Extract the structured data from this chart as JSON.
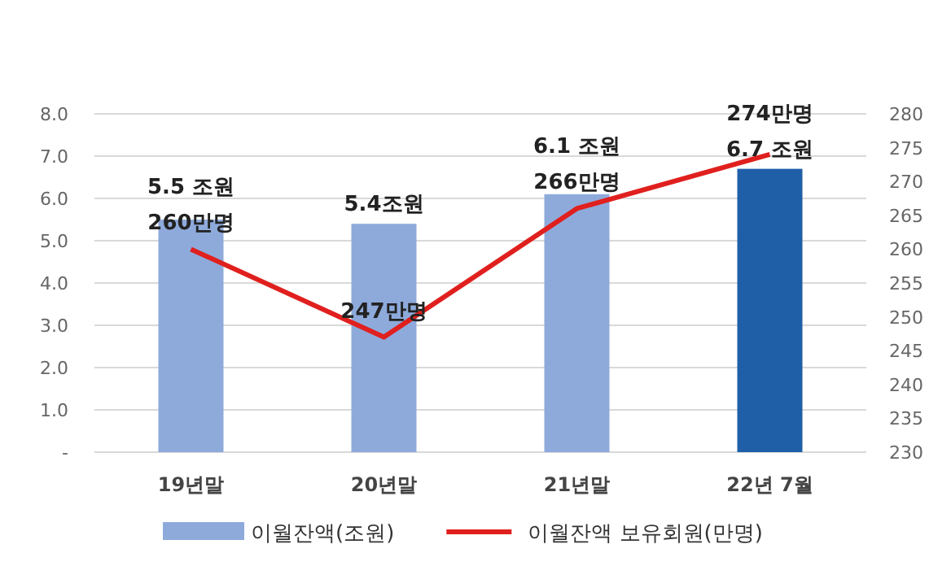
{
  "chart_data": {
    "type": "bar",
    "categories": [
      "19년말",
      "20년말",
      "21년말",
      "22년 7월"
    ],
    "series": [
      {
        "name": "이월잔액(조원)",
        "colors": [
          "#8eaadb",
          "#8eaadb",
          "#8eaadb",
          "#1f5fa8"
        ],
        "color": "#8eaadb",
        "values": [
          5.5,
          5.4,
          6.1,
          6.7
        ],
        "value_labels": [
          "5.5 조원",
          "5.4조원",
          "6.1 조원",
          "6.7 조원"
        ]
      },
      {
        "name": "이월잔액 보유회원(만명)",
        "type": "line",
        "axis": "y2",
        "color": "#e0201e",
        "marker": "none",
        "values": [
          260,
          247,
          266,
          274
        ],
        "value_labels": [
          "260만명",
          "247만명",
          "266만명",
          "274만명"
        ]
      }
    ],
    "ylim": [
      0,
      8
    ],
    "yticks": [
      {
        "value": 0,
        "label": "-"
      },
      {
        "value": 1,
        "label": "1.0"
      },
      {
        "value": 2,
        "label": "2.0"
      },
      {
        "value": 3,
        "label": "3.0"
      },
      {
        "value": 4,
        "label": "4.0"
      },
      {
        "value": 5,
        "label": "5.0"
      },
      {
        "value": 6,
        "label": "6.0"
      },
      {
        "value": 7,
        "label": "7.0"
      },
      {
        "value": 8,
        "label": "8.0"
      }
    ],
    "y2lim": [
      230,
      280
    ],
    "y2ticks": [
      230,
      235,
      240,
      245,
      250,
      255,
      260,
      265,
      270,
      275,
      280
    ],
    "grid": "y",
    "legend": "bottom"
  }
}
